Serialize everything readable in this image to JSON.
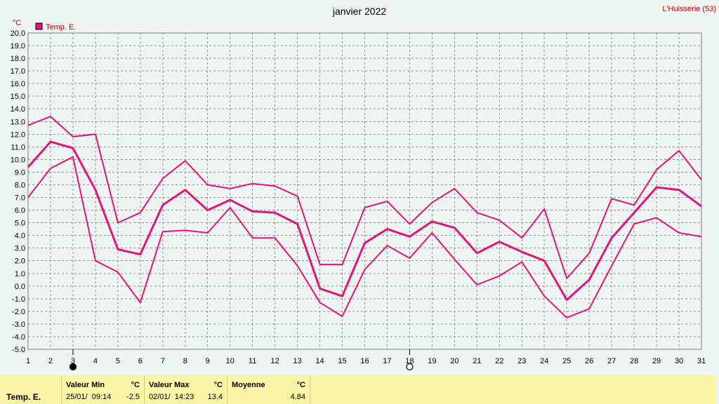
{
  "header": {
    "title": "janvier 2022",
    "station": "L'Huisserie (53)"
  },
  "chart_data": {
    "type": "line",
    "title": "janvier 2022",
    "ylabel": "°C",
    "ylim": [
      -5.0,
      20.0
    ],
    "yticks": [
      "20.0",
      "19.0",
      "18.0",
      "17.0",
      "16.0",
      "15.0",
      "14.0",
      "13.0",
      "12.0",
      "11.0",
      "10.0",
      "9.0",
      "8.0",
      "7.0",
      "6.0",
      "5.0",
      "4.0",
      "3.0",
      "2.0",
      "1.0",
      "0.0",
      "-1.0",
      "-2.0",
      "-3.0",
      "-4.0",
      "-5.0"
    ],
    "x": [
      1,
      2,
      3,
      4,
      5,
      6,
      7,
      8,
      9,
      10,
      11,
      12,
      13,
      14,
      15,
      16,
      17,
      18,
      19,
      20,
      21,
      22,
      23,
      24,
      25,
      26,
      27,
      28,
      29,
      30,
      31
    ],
    "grid": true,
    "legend": "top-left",
    "legend_label": "Temp. E.",
    "color": "#e0157a",
    "series": [
      {
        "role": "max",
        "values": [
          12.7,
          13.4,
          11.8,
          12.0,
          5.0,
          5.8,
          8.5,
          9.9,
          8.0,
          7.7,
          8.1,
          7.9,
          7.1,
          1.7,
          1.7,
          6.2,
          6.7,
          4.9,
          6.6,
          7.7,
          5.8,
          5.2,
          3.8,
          6.1,
          0.6,
          2.6,
          6.9,
          6.4,
          9.2,
          10.7,
          8.4
        ]
      },
      {
        "role": "mean",
        "values": [
          9.4,
          11.4,
          10.9,
          7.6,
          2.9,
          2.5,
          6.4,
          7.6,
          6.0,
          6.8,
          5.9,
          5.8,
          4.9,
          -0.2,
          -0.8,
          3.4,
          4.5,
          3.9,
          5.1,
          4.6,
          2.6,
          3.5,
          2.7,
          2.0,
          -1.1,
          0.5,
          3.8,
          5.8,
          7.8,
          7.6,
          6.3
        ]
      },
      {
        "role": "min",
        "values": [
          7.0,
          9.3,
          10.2,
          2.0,
          1.1,
          -1.3,
          4.3,
          4.4,
          4.2,
          6.2,
          3.8,
          3.8,
          1.6,
          -1.3,
          -2.4,
          1.3,
          3.2,
          2.2,
          4.2,
          2.1,
          0.1,
          0.8,
          1.9,
          -0.8,
          -2.5,
          -1.8,
          1.6,
          4.9,
          5.4,
          4.2,
          3.9
        ]
      }
    ],
    "moon_markers": [
      {
        "day": 3,
        "phase": "new-moon"
      },
      {
        "day": 18,
        "phase": "full-moon"
      }
    ]
  },
  "summary": {
    "series_label": "Temp. E.",
    "min": {
      "label": "Valeur Min",
      "unit": "°C",
      "datetime": "25/01/  09:14",
      "value": "-2.5"
    },
    "max": {
      "label": "Valeur Max",
      "unit": "°C",
      "datetime": "02/01/  14:23",
      "value": "13.4"
    },
    "avg": {
      "label": "Moyenne",
      "unit": "°C",
      "value": "4.84"
    }
  }
}
